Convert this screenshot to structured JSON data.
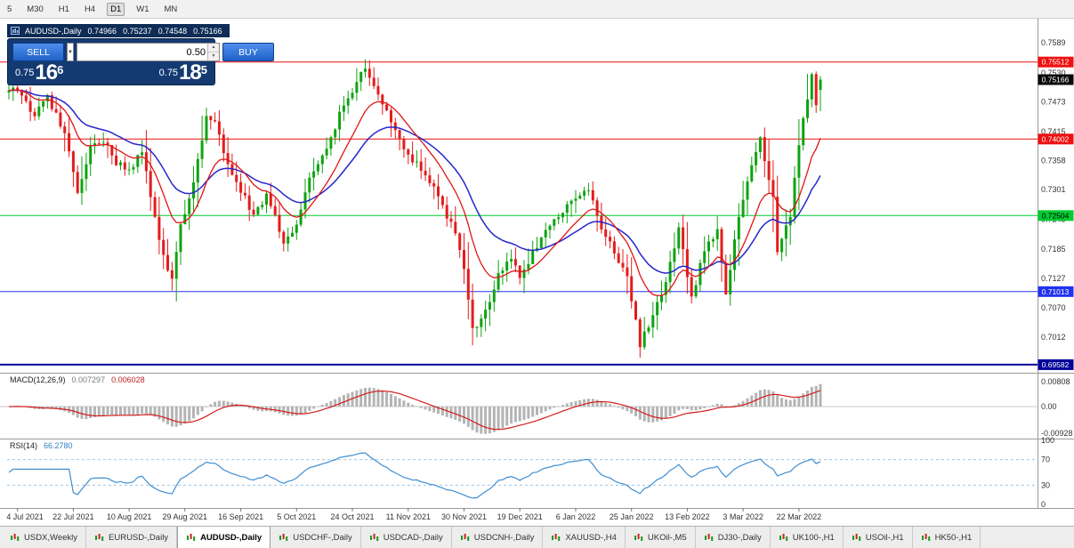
{
  "toolbar": {
    "timeframes": [
      "5",
      "M30",
      "H1",
      "H4",
      "D1",
      "W1",
      "MN"
    ],
    "active_timeframe": "D1"
  },
  "chart_header": {
    "symbol": "AUDUSD-,Daily",
    "open": "0.74966",
    "high": "0.75237",
    "low": "0.74548",
    "close": "0.75166"
  },
  "trade_panel": {
    "sell_label": "SELL",
    "buy_label": "BUY",
    "volume": "0.50",
    "bid": {
      "prefix": "0.75",
      "big": "16",
      "sup": "6"
    },
    "ask": {
      "prefix": "0.75",
      "big": "18",
      "sup": "5"
    }
  },
  "indicators": {
    "macd": {
      "label": "MACD(12,26,9)",
      "value1": "0.007297",
      "value2": "0.006028",
      "axis": [
        "0.00808",
        "0.00",
        "-0.00928"
      ]
    },
    "rsi": {
      "label": "RSI(14)",
      "value": "66.2780",
      "axis": [
        "100",
        "70",
        "30",
        "0"
      ]
    }
  },
  "tabs": [
    "USDX,Weekly",
    "EURUSD-,Daily",
    "AUDUSD-,Daily",
    "USDCHF-,Daily",
    "USDCAD-,Daily",
    "USDCNH-,Daily",
    "XAUUSD-,H4",
    "UKOil-,M5",
    "DJ30-,Daily",
    "UK100-,H1",
    "USOil-,H1",
    "HK50-,H1"
  ],
  "active_tab": "AUDUSD-,Daily",
  "chart_data": {
    "type": "candlestick",
    "title": "AUDUSD-,Daily",
    "last_candle": [
      0.74966,
      0.75237,
      0.74548,
      0.75166
    ],
    "axis": {
      "price_top": 0.7636,
      "price_bottom": 0.69424
    },
    "y_ticks": [
      0.7589,
      0.753,
      0.7473,
      0.7415,
      0.7358,
      0.7301,
      0.7243,
      0.7185,
      0.7127,
      0.707,
      0.7012
    ],
    "x_labels": [
      "4 Jul 2021",
      "22 Jul 2021",
      "10 Aug 2021",
      "29 Aug 2021",
      "16 Sep 2021",
      "5 Oct 2021",
      "24 Oct 2021",
      "11 Nov 2021",
      "30 Nov 2021",
      "19 Dec 2021",
      "6 Jan 2022",
      "25 Jan 2022",
      "13 Feb 2022",
      "3 Mar 2022",
      "22 Mar 2022"
    ],
    "x_label_indices": [
      2,
      15,
      28,
      41,
      54,
      67,
      80,
      93,
      106,
      119,
      132,
      145,
      158,
      171,
      184
    ],
    "candle_count": 190,
    "waypoints": [
      [
        0,
        0.7495
      ],
      [
        2,
        0.75
      ],
      [
        6,
        0.7445
      ],
      [
        9,
        0.7485
      ],
      [
        13,
        0.741
      ],
      [
        16,
        0.729
      ],
      [
        19,
        0.739
      ],
      [
        22,
        0.74
      ],
      [
        25,
        0.7355
      ],
      [
        28,
        0.7335
      ],
      [
        31,
        0.7375
      ],
      [
        33,
        0.729
      ],
      [
        36,
        0.717
      ],
      [
        38,
        0.7125
      ],
      [
        40,
        0.723
      ],
      [
        43,
        0.731
      ],
      [
        46,
        0.745
      ],
      [
        48,
        0.743
      ],
      [
        51,
        0.735
      ],
      [
        54,
        0.73
      ],
      [
        57,
        0.725
      ],
      [
        60,
        0.729
      ],
      [
        64,
        0.72
      ],
      [
        67,
        0.723
      ],
      [
        70,
        0.732
      ],
      [
        74,
        0.738
      ],
      [
        78,
        0.747
      ],
      [
        81,
        0.7505
      ],
      [
        83,
        0.7545
      ],
      [
        85,
        0.7505
      ],
      [
        88,
        0.7455
      ],
      [
        91,
        0.7405
      ],
      [
        93,
        0.737
      ],
      [
        96,
        0.734
      ],
      [
        99,
        0.73
      ],
      [
        102,
        0.725
      ],
      [
        104,
        0.722
      ],
      [
        106,
        0.714
      ],
      [
        108,
        0.7025
      ],
      [
        111,
        0.7065
      ],
      [
        114,
        0.713
      ],
      [
        117,
        0.7165
      ],
      [
        119,
        0.7125
      ],
      [
        122,
        0.718
      ],
      [
        126,
        0.7235
      ],
      [
        129,
        0.7255
      ],
      [
        132,
        0.729
      ],
      [
        135,
        0.73
      ],
      [
        138,
        0.7225
      ],
      [
        141,
        0.718
      ],
      [
        144,
        0.713
      ],
      [
        147,
        0.6995
      ],
      [
        150,
        0.706
      ],
      [
        153,
        0.712
      ],
      [
        156,
        0.723
      ],
      [
        159,
        0.709
      ],
      [
        162,
        0.718
      ],
      [
        165,
        0.722
      ],
      [
        167,
        0.71
      ],
      [
        170,
        0.7245
      ],
      [
        172,
        0.732
      ],
      [
        175,
        0.74
      ],
      [
        178,
        0.729
      ],
      [
        179,
        0.7175
      ],
      [
        182,
        0.7255
      ],
      [
        184,
        0.739
      ],
      [
        186,
        0.748
      ],
      [
        187,
        0.753
      ],
      [
        188,
        0.747
      ],
      [
        189,
        0.75166
      ]
    ],
    "levels": [
      {
        "price": 0.75512,
        "label": "0.75512",
        "color": "#ee1111",
        "text": "#ffffff",
        "width": 1
      },
      {
        "price": 0.74002,
        "label": "0.74002",
        "color": "#ee1111",
        "text": "#ffffff",
        "width": 1
      },
      {
        "price": 0.72504,
        "label": "0.72504",
        "color": "#00cc33",
        "text": "#000000",
        "width": 1
      },
      {
        "price": 0.71013,
        "label": "0.71013",
        "color": "#2233ee",
        "text": "#ffffff",
        "width": 1
      },
      {
        "price": 0.69582,
        "label": "0.69582",
        "color": "#000099",
        "text": "#ffffff",
        "width": 2
      }
    ],
    "current_price": {
      "value": 0.75166,
      "label": "0.75166",
      "box": "#0a0a0a",
      "text": "#ffffff"
    },
    "colors": {
      "up": "#0fa312",
      "down": "#e41c1c",
      "background": "#ffffff",
      "separator": "#9a9a9a"
    },
    "ma": {
      "fast": {
        "period": 12,
        "color": "#e01616"
      },
      "slow": {
        "period": 26,
        "color": "#2626cc"
      }
    },
    "macd": {
      "histogram_color": "#b4b4b4",
      "signal_color": "#d41b1b",
      "last_main": 0.007297,
      "last_signal": 0.006028
    },
    "rsi": {
      "period": 14,
      "color": "#3f8fd2",
      "last": 66.278,
      "levels": [
        70,
        30
      ],
      "range": [
        0,
        100
      ]
    }
  }
}
